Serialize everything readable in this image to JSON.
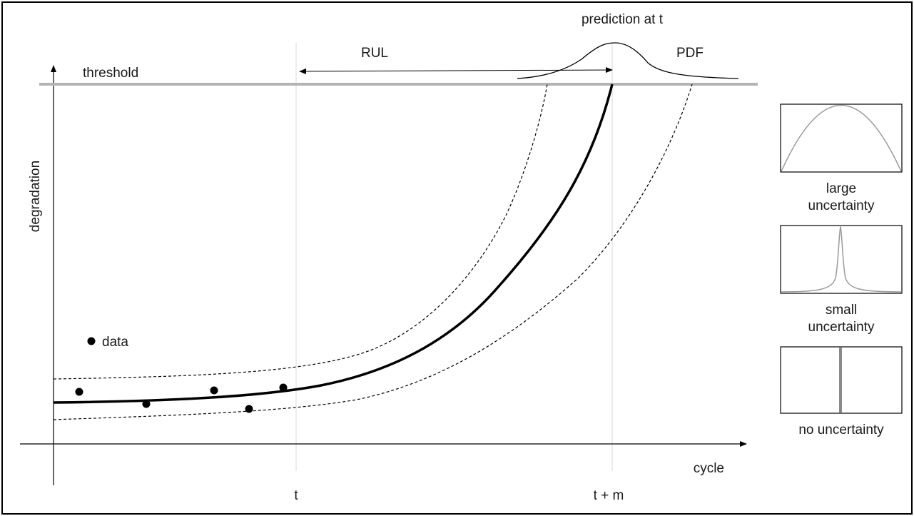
{
  "labels": {
    "threshold": "threshold",
    "y_axis": "degradation",
    "x_axis": "cycle",
    "tick_t": "t",
    "tick_tm": "t + m",
    "rul": "RUL",
    "prediction": "prediction at t",
    "pdf": "PDF",
    "data_legend": "data"
  },
  "panels": [
    {
      "line1": "large",
      "line2": "uncertainty"
    },
    {
      "line1": "small",
      "line2": "uncertainty"
    },
    {
      "line1": "no uncertainty",
      "line2": ""
    }
  ],
  "colors": {
    "threshold_line": "#b3b3b3",
    "curve": "#000000",
    "panel_curve": "#9a9a9a",
    "guide_line": "#e0e0e0"
  }
}
